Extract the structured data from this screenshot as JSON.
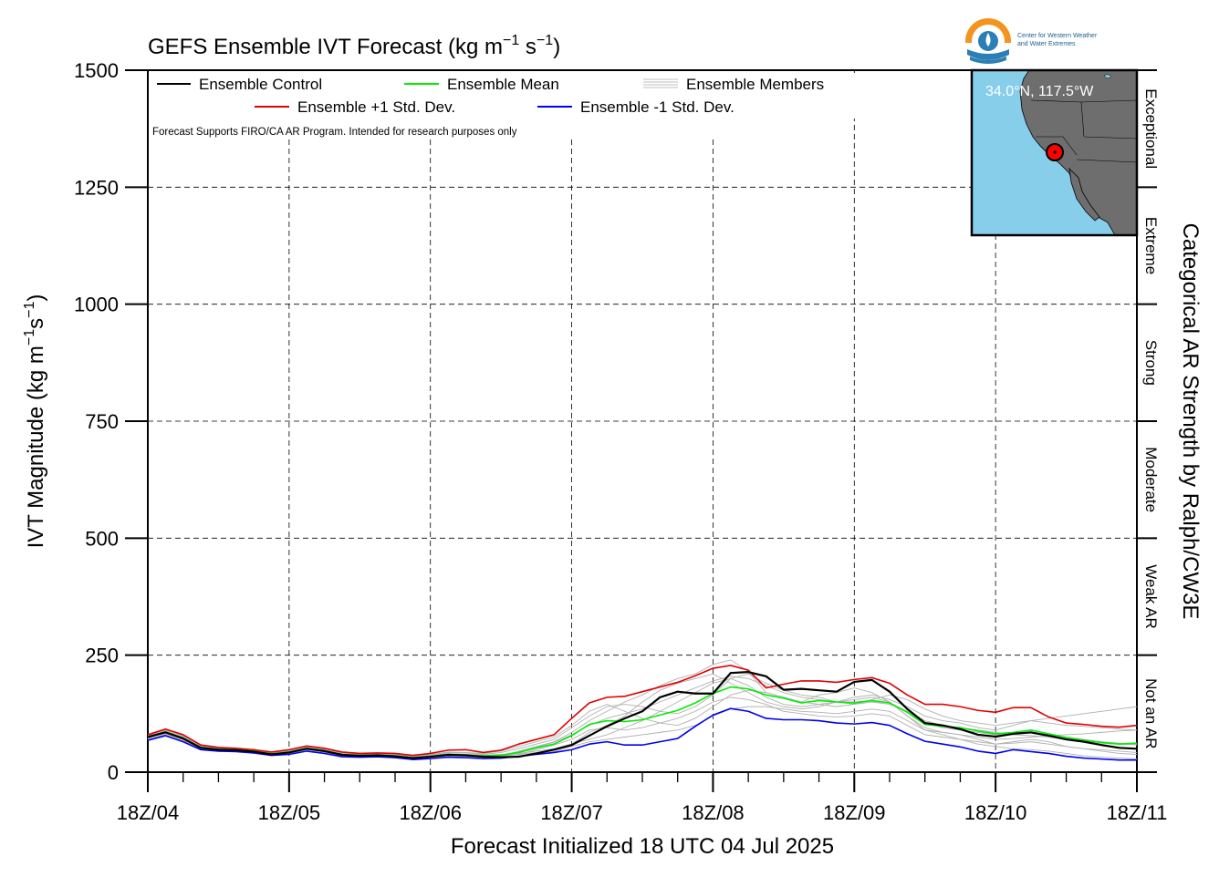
{
  "chart_data": {
    "type": "line",
    "title": "GEFS Ensemble IVT Forecast (kg m",
    "title_exp1": "−1",
    "title_mid": " s",
    "title_exp2": "−1",
    "title_end": ")",
    "xlabel": "Forecast Initialized 18 UTC 04 Jul 2025",
    "ylabel": "IVT Magnitude (kg m",
    "ylabel_exp1": "−1",
    "ylabel_mid": "s",
    "ylabel_exp2": "−1",
    "ylabel_end": ")",
    "right_axis_title": "Categorical AR Strength by Ralph/CW3E",
    "ylim": [
      0,
      1500
    ],
    "xlim": [
      0,
      168
    ],
    "yticks": [
      0,
      250,
      500,
      750,
      1000,
      1250,
      1500
    ],
    "ytick_labels": [
      "0",
      "250",
      "500",
      "750",
      "1000",
      "1250",
      "1500"
    ],
    "xticks": [
      0,
      24,
      48,
      72,
      96,
      120,
      144,
      168
    ],
    "xtick_labels": [
      "18Z/04",
      "18Z/05",
      "18Z/06",
      "18Z/07",
      "18Z/08",
      "18Z/09",
      "18Z/10",
      "18Z/11"
    ],
    "grid": true,
    "legend_placement": "top-left",
    "note": "Forecast Supports FIRO/CA AR Program. Intended for research purposes only",
    "categories": [
      {
        "label": "Not an AR",
        "range": [
          0,
          250
        ]
      },
      {
        "label": "Weak AR",
        "range": [
          250,
          500
        ]
      },
      {
        "label": "Moderate",
        "range": [
          500,
          750
        ]
      },
      {
        "label": "Strong",
        "range": [
          750,
          1000
        ]
      },
      {
        "label": "Extreme",
        "range": [
          1000,
          1250
        ]
      },
      {
        "label": "Exceptional",
        "range": [
          1250,
          1500
        ]
      }
    ],
    "x": [
      0,
      3,
      6,
      9,
      12,
      15,
      18,
      21,
      24,
      27,
      30,
      33,
      36,
      39,
      42,
      45,
      48,
      51,
      54,
      57,
      60,
      63,
      66,
      69,
      72,
      75,
      78,
      81,
      84,
      87,
      90,
      93,
      96,
      99,
      102,
      105,
      108,
      111,
      114,
      117,
      120,
      123,
      126,
      129,
      132,
      135,
      138,
      141,
      144,
      147,
      150,
      153,
      156,
      159,
      162,
      165,
      168
    ],
    "series": [
      {
        "name": "Ensemble Control",
        "color": "#000000",
        "values": [
          75,
          85,
          72,
          52,
          48,
          47,
          44,
          38,
          42,
          50,
          45,
          37,
          35,
          36,
          34,
          30,
          33,
          37,
          36,
          33,
          32,
          33,
          40,
          48,
          58,
          78,
          98,
          115,
          130,
          160,
          172,
          168,
          168,
          212,
          214,
          205,
          176,
          178,
          175,
          172,
          193,
          197,
          172,
          135,
          105,
          100,
          92,
          80,
          76,
          82,
          85,
          78,
          70,
          65,
          58,
          52,
          50
        ]
      },
      {
        "name": "Ensemble Mean",
        "color": "#00ee00",
        "values": [
          75,
          86,
          73,
          53,
          49,
          48,
          45,
          39,
          43,
          51,
          46,
          38,
          36,
          37,
          35,
          31,
          34,
          38,
          37,
          35,
          36,
          42,
          52,
          60,
          78,
          102,
          110,
          108,
          112,
          122,
          132,
          148,
          168,
          182,
          178,
          165,
          158,
          148,
          153,
          150,
          148,
          153,
          148,
          128,
          102,
          98,
          95,
          88,
          82,
          85,
          90,
          82,
          74,
          68,
          63,
          60,
          62
        ]
      },
      {
        "name": "Ensemble +1 Std. Dev.",
        "color": "#e00000",
        "values": [
          80,
          92,
          80,
          58,
          53,
          51,
          48,
          43,
          48,
          56,
          51,
          43,
          40,
          41,
          40,
          36,
          40,
          47,
          48,
          42,
          47,
          60,
          70,
          80,
          115,
          148,
          160,
          162,
          172,
          182,
          192,
          206,
          222,
          228,
          218,
          180,
          188,
          195,
          195,
          192,
          198,
          202,
          190,
          165,
          145,
          145,
          140,
          132,
          128,
          138,
          138,
          118,
          105,
          102,
          98,
          96,
          100
        ]
      },
      {
        "name": "Ensemble -1 Std. Dev.",
        "color": "#0000ee",
        "values": [
          68,
          78,
          65,
          48,
          45,
          44,
          41,
          36,
          38,
          45,
          40,
          33,
          32,
          33,
          31,
          27,
          29,
          32,
          31,
          29,
          30,
          34,
          38,
          42,
          48,
          60,
          65,
          58,
          58,
          65,
          72,
          98,
          122,
          136,
          130,
          115,
          112,
          112,
          110,
          105,
          103,
          106,
          100,
          82,
          66,
          60,
          54,
          45,
          40,
          48,
          44,
          40,
          34,
          30,
          28,
          26,
          26
        ]
      }
    ],
    "members_label": "Ensemble Members",
    "members": [
      [
        72,
        86,
        70,
        51,
        48,
        47,
        45,
        38,
        43,
        50,
        46,
        37,
        35,
        36,
        34,
        30,
        34,
        38,
        36,
        34,
        35,
        45,
        55,
        65,
        85,
        110,
        130,
        150,
        165,
        185,
        200,
        210,
        230,
        240,
        215,
        170,
        160,
        150,
        165,
        170,
        180,
        170,
        150,
        120,
        95,
        85,
        80,
        70,
        60,
        65,
        70,
        65,
        55,
        50,
        45,
        40,
        38
      ],
      [
        78,
        90,
        75,
        55,
        50,
        48,
        46,
        40,
        44,
        52,
        47,
        39,
        37,
        38,
        36,
        32,
        36,
        40,
        38,
        36,
        38,
        40,
        45,
        50,
        60,
        85,
        100,
        120,
        150,
        175,
        190,
        200,
        210,
        190,
        170,
        150,
        140,
        135,
        140,
        150,
        160,
        165,
        155,
        140,
        120,
        110,
        105,
        95,
        90,
        100,
        110,
        115,
        120,
        125,
        130,
        135,
        140
      ],
      [
        70,
        82,
        68,
        50,
        46,
        45,
        43,
        37,
        41,
        49,
        44,
        36,
        34,
        35,
        33,
        29,
        32,
        36,
        35,
        32,
        33,
        38,
        48,
        58,
        70,
        90,
        95,
        90,
        95,
        105,
        115,
        130,
        150,
        160,
        155,
        145,
        130,
        125,
        120,
        118,
        120,
        125,
        120,
        100,
        80,
        75,
        70,
        65,
        60,
        62,
        65,
        60,
        55,
        50,
        48,
        45,
        42
      ],
      [
        76,
        88,
        74,
        54,
        50,
        49,
        46,
        41,
        45,
        53,
        48,
        40,
        38,
        39,
        37,
        33,
        37,
        42,
        41,
        38,
        42,
        50,
        60,
        70,
        95,
        120,
        140,
        145,
        140,
        130,
        125,
        140,
        165,
        200,
        210,
        190,
        175,
        165,
        160,
        150,
        145,
        150,
        145,
        130,
        110,
        100,
        95,
        90,
        85,
        80,
        78,
        75,
        70,
        68,
        65,
        60,
        58
      ],
      [
        74,
        84,
        71,
        52,
        48,
        47,
        44,
        39,
        42,
        50,
        45,
        38,
        36,
        37,
        35,
        31,
        34,
        38,
        37,
        34,
        35,
        38,
        42,
        48,
        60,
        70,
        80,
        95,
        110,
        130,
        150,
        170,
        190,
        200,
        185,
        160,
        145,
        140,
        145,
        150,
        155,
        160,
        150,
        120,
        90,
        80,
        70,
        60,
        55,
        50,
        48,
        45,
        40,
        35,
        32,
        30,
        28
      ],
      [
        80,
        92,
        78,
        57,
        52,
        50,
        47,
        42,
        46,
        54,
        49,
        41,
        39,
        40,
        38,
        34,
        38,
        43,
        42,
        40,
        45,
        55,
        65,
        75,
        100,
        130,
        145,
        130,
        115,
        105,
        100,
        115,
        140,
        165,
        175,
        170,
        160,
        150,
        145,
        140,
        145,
        155,
        165,
        155,
        135,
        120,
        110,
        105,
        100,
        105,
        110,
        105,
        100,
        98,
        95,
        92,
        90
      ],
      [
        70,
        80,
        66,
        49,
        46,
        45,
        42,
        36,
        40,
        48,
        43,
        35,
        33,
        34,
        32,
        28,
        31,
        35,
        34,
        31,
        31,
        34,
        38,
        44,
        55,
        65,
        70,
        75,
        80,
        85,
        90,
        100,
        120,
        135,
        140,
        140,
        135,
        130,
        128,
        125,
        130,
        135,
        130,
        110,
        90,
        85,
        80,
        75,
        70,
        72,
        75,
        78,
        80,
        82,
        85,
        88,
        90
      ],
      [
        77,
        89,
        76,
        56,
        51,
        49,
        46,
        40,
        44,
        52,
        47,
        39,
        37,
        38,
        36,
        32,
        35,
        39,
        38,
        35,
        37,
        44,
        54,
        64,
        80,
        100,
        115,
        125,
        135,
        150,
        165,
        180,
        195,
        205,
        200,
        185,
        170,
        160,
        155,
        150,
        150,
        152,
        148,
        130,
        105,
        95,
        90,
        85,
        80,
        82,
        85,
        80,
        75,
        70,
        65,
        62,
        60
      ]
    ],
    "location": "34.0°N, 117.5°W",
    "logo_text_1": "Center for Western Weather",
    "logo_text_2": "and Water Extremes"
  }
}
